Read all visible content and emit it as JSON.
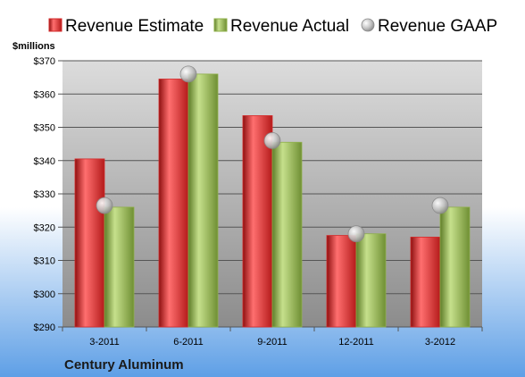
{
  "colors": {
    "estimate": "#d42a2a",
    "actual": "#8fb04a",
    "gaap": "#bdbdbd",
    "plot_top": "#dcdcdc",
    "plot_bottom": "#8c8c8c",
    "background_top": "#ffffff",
    "background_bottom": "#5e9fe6"
  },
  "chart_data": {
    "type": "bar",
    "ylabel": "$millions",
    "footer": "Century Aluminum",
    "categories": [
      "3-2011",
      "6-2011",
      "9-2011",
      "12-2011",
      "3-2012"
    ],
    "ylim": [
      290,
      370
    ],
    "yticks": [
      290,
      300,
      310,
      320,
      330,
      340,
      350,
      360,
      370
    ],
    "ytick_labels": [
      "$290",
      "$300",
      "$310",
      "$320",
      "$330",
      "$340",
      "$350",
      "$360",
      "$370"
    ],
    "grid": true,
    "legend_position": "top",
    "series": [
      {
        "name": "Revenue Estimate",
        "kind": "bar",
        "color_key": "estimate",
        "values": [
          340.5,
          364.5,
          353.5,
          317.5,
          317
        ]
      },
      {
        "name": "Revenue Actual",
        "kind": "bar",
        "color_key": "actual",
        "values": [
          326,
          366,
          345.5,
          318,
          326
        ]
      },
      {
        "name": "Revenue GAAP",
        "kind": "marker",
        "color_key": "gaap",
        "values": [
          326.5,
          366,
          346,
          318,
          326.5
        ]
      }
    ]
  }
}
